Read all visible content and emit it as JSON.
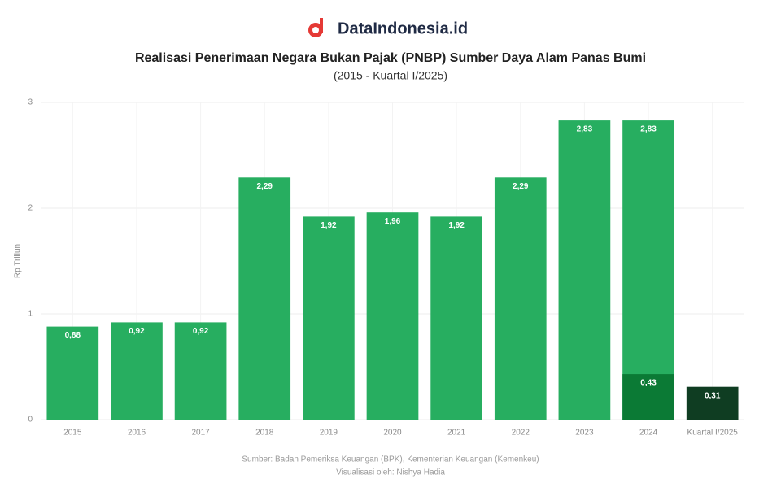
{
  "brand": "DataIndonesia.id",
  "chart_data": {
    "type": "bar",
    "title": "Realisasi Penerimaan Negara Bukan Pajak (PNBP) Sumber Daya Alam Panas Bumi",
    "subtitle": "(2015 - Kuartal I/2025)",
    "y_label": "Rp Triliun",
    "categories": [
      "2015",
      "2016",
      "2017",
      "2018",
      "2019",
      "2020",
      "2021",
      "2022",
      "2023",
      "2024",
      "Kuartal I/2025"
    ],
    "series": [
      {
        "color": "#27ae60",
        "values": [
          0.88,
          0.92,
          0.92,
          2.29,
          1.92,
          1.96,
          1.92,
          2.29,
          2.83,
          2.83,
          null
        ],
        "value_labels": [
          "0,88",
          "0,92",
          "0,92",
          "2,29",
          "1,92",
          "1,96",
          "1,92",
          "2,29",
          "2,83",
          "2,83",
          null
        ]
      },
      {
        "color": "#0b7a35",
        "values": [
          null,
          null,
          null,
          null,
          null,
          null,
          null,
          null,
          null,
          0.43,
          null
        ],
        "value_labels": [
          null,
          null,
          null,
          null,
          null,
          null,
          null,
          null,
          null,
          "0,43",
          null
        ]
      },
      {
        "color": "#0f3d22",
        "values": [
          null,
          null,
          null,
          null,
          null,
          null,
          null,
          null,
          null,
          null,
          0.31
        ],
        "value_labels": [
          null,
          null,
          null,
          null,
          null,
          null,
          null,
          null,
          null,
          null,
          "0,31"
        ]
      }
    ],
    "ylim": [
      0,
      3
    ],
    "yticks": [
      0,
      1,
      2,
      3
    ],
    "grid": true,
    "source": "Sumber: Badan Pemeriksa Keuangan (BPK), Kementerian Keuangan (Kemenkeu)",
    "credit": "Visualisasi oleh: Nishya Hadia"
  }
}
